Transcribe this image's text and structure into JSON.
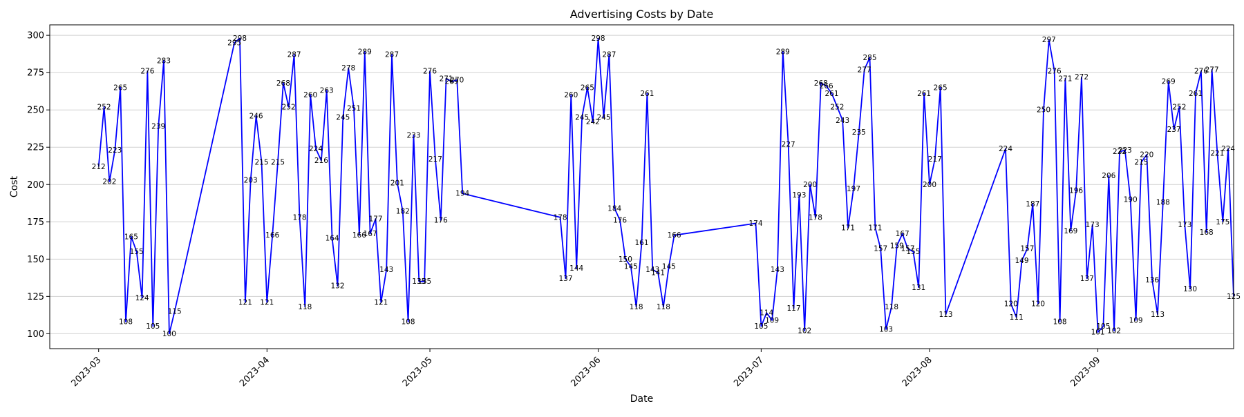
{
  "chart_data": {
    "type": "line",
    "title": "Advertising Costs by Date",
    "xlabel": "Date",
    "ylabel": "Cost",
    "ylim": [
      90,
      307
    ],
    "yticks": [
      100,
      125,
      150,
      175,
      200,
      225,
      250,
      275,
      300
    ],
    "xticks": [
      {
        "date": "2023-03-01",
        "label": "2023-03"
      },
      {
        "date": "2023-04-01",
        "label": "2023-04"
      },
      {
        "date": "2023-05-01",
        "label": "2023-05"
      },
      {
        "date": "2023-06-01",
        "label": "2023-06"
      },
      {
        "date": "2023-07-01",
        "label": "2023-07"
      },
      {
        "date": "2023-08-01",
        "label": "2023-08"
      },
      {
        "date": "2023-09-01",
        "label": "2023-09"
      }
    ],
    "xlim": [
      "2023-02-20",
      "2023-09-26"
    ],
    "grid": "y",
    "line_color": "#0000ff",
    "series": [
      {
        "points": [
          {
            "x": "2023-03-01",
            "y": 212
          },
          {
            "x": "2023-03-02",
            "y": 252
          },
          {
            "x": "2023-03-03",
            "y": 202
          },
          {
            "x": "2023-03-04",
            "y": 223
          },
          {
            "x": "2023-03-05",
            "y": 265
          },
          {
            "x": "2023-03-06",
            "y": 108
          },
          {
            "x": "2023-03-07",
            "y": 165
          },
          {
            "x": "2023-03-08",
            "y": 155
          },
          {
            "x": "2023-03-09",
            "y": 124
          },
          {
            "x": "2023-03-10",
            "y": 276
          },
          {
            "x": "2023-03-11",
            "y": 105
          },
          {
            "x": "2023-03-12",
            "y": 239
          },
          {
            "x": "2023-03-13",
            "y": 283
          },
          {
            "x": "2023-03-14",
            "y": 100
          },
          {
            "x": "2023-03-15",
            "y": 115
          },
          {
            "x": "2023-03-26",
            "y": 295
          },
          {
            "x": "2023-03-27",
            "y": 298
          },
          {
            "x": "2023-03-28",
            "y": 121
          },
          {
            "x": "2023-03-29",
            "y": 203
          },
          {
            "x": "2023-03-30",
            "y": 246
          },
          {
            "x": "2023-03-31",
            "y": 215
          },
          {
            "x": "2023-04-01",
            "y": 121
          },
          {
            "x": "2023-04-02",
            "y": 166
          },
          {
            "x": "2023-04-03",
            "y": 215
          },
          {
            "x": "2023-04-04",
            "y": 268
          },
          {
            "x": "2023-04-05",
            "y": 252
          },
          {
            "x": "2023-04-06",
            "y": 287
          },
          {
            "x": "2023-04-07",
            "y": 178
          },
          {
            "x": "2023-04-08",
            "y": 118
          },
          {
            "x": "2023-04-09",
            "y": 260
          },
          {
            "x": "2023-04-10",
            "y": 224
          },
          {
            "x": "2023-04-11",
            "y": 216
          },
          {
            "x": "2023-04-12",
            "y": 263
          },
          {
            "x": "2023-04-13",
            "y": 164
          },
          {
            "x": "2023-04-14",
            "y": 132
          },
          {
            "x": "2023-04-15",
            "y": 245
          },
          {
            "x": "2023-04-16",
            "y": 278
          },
          {
            "x": "2023-04-17",
            "y": 251
          },
          {
            "x": "2023-04-18",
            "y": 166
          },
          {
            "x": "2023-04-19",
            "y": 289
          },
          {
            "x": "2023-04-20",
            "y": 167
          },
          {
            "x": "2023-04-21",
            "y": 177
          },
          {
            "x": "2023-04-22",
            "y": 121
          },
          {
            "x": "2023-04-23",
            "y": 143
          },
          {
            "x": "2023-04-24",
            "y": 287
          },
          {
            "x": "2023-04-25",
            "y": 201
          },
          {
            "x": "2023-04-26",
            "y": 182
          },
          {
            "x": "2023-04-27",
            "y": 108
          },
          {
            "x": "2023-04-28",
            "y": 233
          },
          {
            "x": "2023-04-29",
            "y": 135
          },
          {
            "x": "2023-04-30",
            "y": 135
          },
          {
            "x": "2023-05-01",
            "y": 276
          },
          {
            "x": "2023-05-02",
            "y": 217
          },
          {
            "x": "2023-05-03",
            "y": 176
          },
          {
            "x": "2023-05-04",
            "y": 271
          },
          {
            "x": "2023-05-05",
            "y": 269
          },
          {
            "x": "2023-05-06",
            "y": 270
          },
          {
            "x": "2023-05-07",
            "y": 194
          },
          {
            "x": "2023-05-25",
            "y": 178
          },
          {
            "x": "2023-05-26",
            "y": 137
          },
          {
            "x": "2023-05-27",
            "y": 260
          },
          {
            "x": "2023-05-28",
            "y": 144
          },
          {
            "x": "2023-05-29",
            "y": 245
          },
          {
            "x": "2023-05-30",
            "y": 265
          },
          {
            "x": "2023-05-31",
            "y": 242
          },
          {
            "x": "2023-06-01",
            "y": 298
          },
          {
            "x": "2023-06-02",
            "y": 245
          },
          {
            "x": "2023-06-03",
            "y": 287
          },
          {
            "x": "2023-06-04",
            "y": 184
          },
          {
            "x": "2023-06-05",
            "y": 176
          },
          {
            "x": "2023-06-06",
            "y": 150
          },
          {
            "x": "2023-06-07",
            "y": 145
          },
          {
            "x": "2023-06-08",
            "y": 118
          },
          {
            "x": "2023-06-09",
            "y": 161
          },
          {
            "x": "2023-06-10",
            "y": 261
          },
          {
            "x": "2023-06-11",
            "y": 143
          },
          {
            "x": "2023-06-12",
            "y": 141
          },
          {
            "x": "2023-06-13",
            "y": 118
          },
          {
            "x": "2023-06-14",
            "y": 145
          },
          {
            "x": "2023-06-15",
            "y": 166
          },
          {
            "x": "2023-06-30",
            "y": 174
          },
          {
            "x": "2023-07-01",
            "y": 105
          },
          {
            "x": "2023-07-02",
            "y": 114
          },
          {
            "x": "2023-07-03",
            "y": 109
          },
          {
            "x": "2023-07-04",
            "y": 143
          },
          {
            "x": "2023-07-05",
            "y": 289
          },
          {
            "x": "2023-07-06",
            "y": 227
          },
          {
            "x": "2023-07-07",
            "y": 117
          },
          {
            "x": "2023-07-08",
            "y": 193
          },
          {
            "x": "2023-07-09",
            "y": 102
          },
          {
            "x": "2023-07-10",
            "y": 200
          },
          {
            "x": "2023-07-11",
            "y": 178
          },
          {
            "x": "2023-07-12",
            "y": 268
          },
          {
            "x": "2023-07-13",
            "y": 266
          },
          {
            "x": "2023-07-14",
            "y": 261
          },
          {
            "x": "2023-07-15",
            "y": 252
          },
          {
            "x": "2023-07-16",
            "y": 243
          },
          {
            "x": "2023-07-17",
            "y": 171
          },
          {
            "x": "2023-07-18",
            "y": 197
          },
          {
            "x": "2023-07-19",
            "y": 235
          },
          {
            "x": "2023-07-20",
            "y": 277
          },
          {
            "x": "2023-07-21",
            "y": 285
          },
          {
            "x": "2023-07-22",
            "y": 171
          },
          {
            "x": "2023-07-23",
            "y": 157
          },
          {
            "x": "2023-07-24",
            "y": 103
          },
          {
            "x": "2023-07-25",
            "y": 118
          },
          {
            "x": "2023-07-26",
            "y": 159
          },
          {
            "x": "2023-07-27",
            "y": 167
          },
          {
            "x": "2023-07-28",
            "y": 157
          },
          {
            "x": "2023-07-29",
            "y": 155
          },
          {
            "x": "2023-07-30",
            "y": 131
          },
          {
            "x": "2023-07-31",
            "y": 261
          },
          {
            "x": "2023-08-01",
            "y": 200
          },
          {
            "x": "2023-08-02",
            "y": 217
          },
          {
            "x": "2023-08-03",
            "y": 265
          },
          {
            "x": "2023-08-04",
            "y": 113
          },
          {
            "x": "2023-08-15",
            "y": 224
          },
          {
            "x": "2023-08-16",
            "y": 120
          },
          {
            "x": "2023-08-17",
            "y": 111
          },
          {
            "x": "2023-08-18",
            "y": 149
          },
          {
            "x": "2023-08-19",
            "y": 157
          },
          {
            "x": "2023-08-20",
            "y": 187
          },
          {
            "x": "2023-08-21",
            "y": 120
          },
          {
            "x": "2023-08-22",
            "y": 250
          },
          {
            "x": "2023-08-23",
            "y": 297
          },
          {
            "x": "2023-08-24",
            "y": 276
          },
          {
            "x": "2023-08-25",
            "y": 108
          },
          {
            "x": "2023-08-26",
            "y": 271
          },
          {
            "x": "2023-08-27",
            "y": 169
          },
          {
            "x": "2023-08-28",
            "y": 196
          },
          {
            "x": "2023-08-29",
            "y": 272
          },
          {
            "x": "2023-08-30",
            "y": 137
          },
          {
            "x": "2023-08-31",
            "y": 173
          },
          {
            "x": "2023-09-01",
            "y": 101
          },
          {
            "x": "2023-09-02",
            "y": 105
          },
          {
            "x": "2023-09-03",
            "y": 206
          },
          {
            "x": "2023-09-04",
            "y": 102
          },
          {
            "x": "2023-09-05",
            "y": 222
          },
          {
            "x": "2023-09-06",
            "y": 223
          },
          {
            "x": "2023-09-07",
            "y": 190
          },
          {
            "x": "2023-09-08",
            "y": 109
          },
          {
            "x": "2023-09-09",
            "y": 215
          },
          {
            "x": "2023-09-10",
            "y": 220
          },
          {
            "x": "2023-09-11",
            "y": 136
          },
          {
            "x": "2023-09-12",
            "y": 113
          },
          {
            "x": "2023-09-13",
            "y": 188
          },
          {
            "x": "2023-09-14",
            "y": 269
          },
          {
            "x": "2023-09-15",
            "y": 237
          },
          {
            "x": "2023-09-16",
            "y": 252
          },
          {
            "x": "2023-09-17",
            "y": 173
          },
          {
            "x": "2023-09-18",
            "y": 130
          },
          {
            "x": "2023-09-19",
            "y": 261
          },
          {
            "x": "2023-09-20",
            "y": 276
          },
          {
            "x": "2023-09-21",
            "y": 168
          },
          {
            "x": "2023-09-22",
            "y": 277
          },
          {
            "x": "2023-09-23",
            "y": 221
          },
          {
            "x": "2023-09-24",
            "y": 175
          },
          {
            "x": "2023-09-25",
            "y": 224
          },
          {
            "x": "2023-09-26",
            "y": 125
          }
        ]
      }
    ]
  }
}
